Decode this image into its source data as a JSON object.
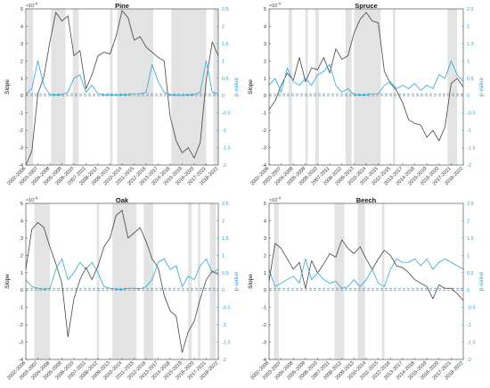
{
  "colors": {
    "slope": "#444444",
    "pvalue": "#2aa6d6",
    "shade": "#e3e3e3",
    "axis": "#555555"
  },
  "chart_data": [
    {
      "type": "line",
      "title": "Pine",
      "ylabel": "Slope",
      "y2label": "p-value",
      "exponent_label": "×10",
      "exponent": "-4",
      "ylim": [
        -4,
        5
      ],
      "y2lim": [
        -2,
        2.5
      ],
      "yticks": [
        -4,
        -3,
        -2,
        -1,
        0,
        1,
        2,
        3,
        4,
        5
      ],
      "y2ticks": [
        -2,
        -1.5,
        -1,
        -0.5,
        0,
        0.5,
        1,
        1.5,
        2,
        2.5
      ],
      "xlim": [
        2006,
        2022
      ],
      "xticks": [
        2006,
        2007,
        2008,
        2009,
        2010,
        2011,
        2012,
        2013,
        2014,
        2015,
        2016,
        2017,
        2018,
        2019,
        2020,
        2021,
        2022
      ],
      "xticklabels": [
        "2002-2006",
        "2003-2007",
        "2004-2008",
        "2005-2009",
        "2006-2010",
        "2007-2011",
        "2008-2012",
        "2009-2013",
        "2010-2014",
        "2011-2015",
        "2012-2016",
        "2013-2017",
        "2014-2018",
        "2015-2019",
        "2016-2020",
        "2017-2021",
        "2018-2022"
      ],
      "shaded_periods": [
        [
          2006.1,
          2006.6
        ],
        [
          2008.1,
          2009.3
        ],
        [
          2009.9,
          2010.4
        ],
        [
          2013.0,
          2013.2
        ],
        [
          2013.6,
          2016.6
        ],
        [
          2018.1,
          2021.0
        ],
        [
          2021.6,
          2022.0
        ]
      ],
      "reference_lines": [
        0.05,
        0
      ],
      "series": [
        {
          "axis": "left",
          "x": [
            2006,
            2006.5,
            2007,
            2007.5,
            2008,
            2008.5,
            2009,
            2009.5,
            2010,
            2010.5,
            2011,
            2011.5,
            2012,
            2012.5,
            2013,
            2013.5,
            2014,
            2014.5,
            2015,
            2015.5,
            2016,
            2016.5,
            2017,
            2017.5,
            2018,
            2018.5,
            2019,
            2019.5,
            2020,
            2020.5,
            2021,
            2021.5,
            2022
          ],
          "values": [
            -4,
            -3.2,
            0.1,
            1.1,
            3.1,
            4.8,
            4.3,
            4.6,
            2.3,
            2.6,
            0.4,
            1.2,
            2.3,
            2.5,
            2.4,
            3.4,
            4.9,
            4.5,
            3.2,
            3.4,
            2.8,
            2.5,
            2.2,
            2.0,
            -1.2,
            -2.6,
            -3.3,
            -3.0,
            -3.6,
            -2.7,
            0.9,
            3.1,
            2.3
          ]
        },
        {
          "axis": "right",
          "x": [
            2006,
            2006.5,
            2007,
            2007.5,
            2008,
            2008.5,
            2009,
            2009.5,
            2010,
            2010.5,
            2011,
            2011.5,
            2012,
            2012.5,
            2013,
            2013.5,
            2014,
            2014.5,
            2015,
            2015.5,
            2016,
            2016.5,
            2017,
            2017.5,
            2018,
            2018.5,
            2019,
            2019.5,
            2020,
            2020.5,
            2021,
            2021.5,
            2022
          ],
          "values": [
            0.05,
            0.2,
            1.0,
            0.3,
            0.03,
            0.02,
            0.03,
            0.1,
            0.5,
            0.6,
            0.1,
            0.3,
            0.05,
            0.02,
            0.03,
            0.01,
            0.02,
            0.03,
            0.05,
            0.05,
            0.1,
            0.9,
            0.4,
            0.1,
            0.02,
            0.01,
            0.01,
            0.02,
            0.03,
            0.1,
            1.0,
            0.1,
            0.05
          ]
        }
      ]
    },
    {
      "type": "line",
      "title": "Spruce",
      "ylabel": "Slope",
      "y2label": "p-value",
      "exponent_label": "×10",
      "exponent": "-4",
      "ylim": [
        -4,
        5
      ],
      "y2lim": [
        -2,
        2.5
      ],
      "yticks": [
        -4,
        -3,
        -2,
        -1,
        0,
        1,
        2,
        3,
        4,
        5
      ],
      "y2ticks": [
        -2,
        -1.5,
        -1,
        -0.5,
        0,
        0.5,
        1,
        1.5,
        2,
        2.5
      ],
      "xlim": [
        2006,
        2022
      ],
      "xticks": [
        2006,
        2007,
        2008,
        2009,
        2010,
        2011,
        2012,
        2013,
        2014,
        2015,
        2016,
        2017,
        2018,
        2019,
        2020,
        2021,
        2022
      ],
      "xticklabels": [
        "2002-2006",
        "2003-2007",
        "2004-2008",
        "2005-2009",
        "2006-2010",
        "2007-2011",
        "2008-2012",
        "2009-2013",
        "2010-2014",
        "2011-2015",
        "2012-2016",
        "2013-2017",
        "2014-2018",
        "2015-2019",
        "2016-2020",
        "2017-2021",
        "2018-2022"
      ],
      "shaded_periods": [
        [
          2007.6,
          2007.9
        ],
        [
          2009.0,
          2009.2
        ],
        [
          2009.8,
          2010.1
        ],
        [
          2012.3,
          2012.8
        ],
        [
          2013.0,
          2015.2
        ],
        [
          2016.2,
          2016.4
        ],
        [
          2020.7,
          2021.5
        ]
      ],
      "reference_lines": [
        0.05,
        0
      ],
      "series": [
        {
          "axis": "left",
          "x": [
            2006,
            2006.5,
            2007,
            2007.5,
            2008,
            2008.5,
            2009,
            2009.5,
            2010,
            2010.5,
            2011,
            2011.5,
            2012,
            2012.5,
            2013,
            2013.5,
            2014,
            2014.5,
            2015,
            2015.5,
            2016,
            2016.5,
            2017,
            2017.5,
            2018,
            2018.5,
            2019,
            2019.5,
            2020,
            2020.5,
            2021,
            2021.5,
            2022
          ],
          "values": [
            -0.8,
            -0.3,
            0.6,
            1.3,
            0.9,
            2.2,
            0.8,
            1.6,
            1.5,
            2.2,
            1.3,
            2.7,
            2.1,
            2.3,
            3.6,
            4.4,
            4.8,
            4.3,
            4.2,
            1.4,
            0.7,
            0.3,
            -0.4,
            -1.4,
            -1.6,
            -1.7,
            -2.4,
            -2.0,
            -2.6,
            -1.8,
            0.7,
            1.0,
            0.5
          ]
        },
        {
          "axis": "right",
          "x": [
            2006,
            2006.5,
            2007,
            2007.5,
            2008,
            2008.5,
            2009,
            2009.5,
            2010,
            2010.5,
            2011,
            2011.5,
            2012,
            2012.5,
            2013,
            2013.5,
            2014,
            2014.5,
            2015,
            2015.5,
            2016,
            2016.5,
            2017,
            2017.5,
            2018,
            2018.5,
            2019,
            2019.5,
            2020,
            2020.5,
            2021,
            2021.5,
            2022
          ],
          "values": [
            0.3,
            0.5,
            0.1,
            0.8,
            0.4,
            0.3,
            0.5,
            0.3,
            0.6,
            0.7,
            0.9,
            0.3,
            0.1,
            0.2,
            0.03,
            0.02,
            0.02,
            0.05,
            0.05,
            0.3,
            0.4,
            0.2,
            0.3,
            0.2,
            0.35,
            0.15,
            0.3,
            0.2,
            0.6,
            0.5,
            1.0,
            0.6,
            0.4
          ]
        }
      ]
    },
    {
      "type": "line",
      "title": "Oak",
      "ylabel": "Slope",
      "y2label": "p-value",
      "exponent_label": "×10",
      "exponent": "-4",
      "ylim": [
        -4,
        5
      ],
      "y2lim": [
        -2,
        2.5
      ],
      "yticks": [
        -4,
        -3,
        -2,
        -1,
        0,
        1,
        2,
        3,
        4,
        5
      ],
      "y2ticks": [
        -2,
        -1.5,
        -1,
        -0.5,
        0,
        0.5,
        1,
        1.5,
        2,
        2.5
      ],
      "xlim": [
        2006,
        2022
      ],
      "xticks": [
        2006,
        2007,
        2008,
        2009,
        2010,
        2011,
        2012,
        2013,
        2014,
        2015,
        2016,
        2017,
        2018,
        2019,
        2020,
        2021,
        2022
      ],
      "xticklabels": [
        "2002-2006",
        "2003-2007",
        "2004-2008",
        "2005-2009",
        "2006-2010",
        "2007-2011",
        "2008-2012",
        "2009-2013",
        "2010-2014",
        "2011-2015",
        "2012-2016",
        "2013-2017",
        "2014-2018",
        "2015-2019",
        "2016-2020",
        "2017-2021",
        "2018-2022"
      ],
      "shaded_periods": [
        [
          2006.7,
          2008.0
        ],
        [
          2011.9,
          2012.1
        ],
        [
          2013.2,
          2015.2
        ],
        [
          2015.8,
          2016.6
        ],
        [
          2019.5,
          2019.8
        ],
        [
          2020.3,
          2020.5
        ],
        [
          2021.3,
          2021.8
        ]
      ],
      "reference_lines": [
        0.05,
        0
      ],
      "series": [
        {
          "axis": "left",
          "x": [
            2006,
            2006.5,
            2007,
            2007.5,
            2008,
            2008.5,
            2009,
            2009.5,
            2010,
            2010.5,
            2011,
            2011.5,
            2012,
            2012.5,
            2013,
            2013.5,
            2014,
            2014.5,
            2015,
            2015.5,
            2016,
            2016.5,
            2017,
            2017.5,
            2018,
            2018.5,
            2019,
            2019.5,
            2020,
            2020.5,
            2021,
            2021.5,
            2022
          ],
          "values": [
            1.2,
            3.5,
            3.9,
            3.6,
            2.5,
            1.5,
            0.4,
            -2.7,
            -0.5,
            0.6,
            1.3,
            0.6,
            1.4,
            2.5,
            3.0,
            4.3,
            4.6,
            3.0,
            3.3,
            3.6,
            2.8,
            1.8,
            1.3,
            -0.3,
            -1.2,
            -1.5,
            -3.6,
            -2.4,
            -1.8,
            -0.5,
            0.6,
            1.1,
            0.9
          ]
        },
        {
          "axis": "right",
          "x": [
            2006,
            2006.5,
            2007,
            2007.5,
            2008,
            2008.5,
            2009,
            2009.5,
            2010,
            2010.5,
            2011,
            2011.5,
            2012,
            2012.5,
            2013,
            2013.5,
            2014,
            2014.5,
            2015,
            2015.5,
            2016,
            2016.5,
            2017,
            2017.5,
            2018,
            2018.5,
            2019,
            2019.5,
            2020,
            2020.5,
            2021,
            2021.5,
            2022
          ],
          "values": [
            0.3,
            0.1,
            0.05,
            0.02,
            0.05,
            0.6,
            0.9,
            0.3,
            0.5,
            0.8,
            0.6,
            0.8,
            0.5,
            0.1,
            0.05,
            0.02,
            0.02,
            0.05,
            0.05,
            0.03,
            0.1,
            0.3,
            0.8,
            0.9,
            0.6,
            0.7,
            0.1,
            0.4,
            0.3,
            0.7,
            0.9,
            0.5,
            0.6
          ]
        }
      ]
    },
    {
      "type": "line",
      "title": "Beech",
      "ylabel": "Slope",
      "y2label": "p-value",
      "exponent_label": "×10",
      "exponent": "-4",
      "ylim": [
        -4,
        5
      ],
      "y2lim": [
        -2,
        2.5
      ],
      "yticks": [
        -4,
        -3,
        -2,
        -1,
        0,
        1,
        2,
        3,
        4,
        5
      ],
      "y2ticks": [
        -2,
        -1.5,
        -1,
        -0.5,
        0,
        0.5,
        1,
        1.5,
        2,
        2.5
      ],
      "xlim": [
        2006,
        2022
      ],
      "xticks": [
        2006,
        2007,
        2008,
        2009,
        2010,
        2011,
        2012,
        2013,
        2014,
        2015,
        2016,
        2017,
        2018,
        2019,
        2020,
        2021,
        2022
      ],
      "xticklabels": [
        "2002-2006",
        "2003-2007",
        "2004-2008",
        "2005-2009",
        "2006-2010",
        "2007-2011",
        "2008-2012",
        "2009-2013",
        "2010-2014",
        "2011-2015",
        "2012-2016",
        "2013-2017",
        "2014-2018",
        "2015-2019",
        "2016-2020",
        "2017-2021",
        "2018-2022"
      ],
      "shaded_periods": [
        [
          2006.4,
          2006.8
        ],
        [
          2011.4,
          2012.2
        ],
        [
          2013.3,
          2013.9
        ],
        [
          2015.3,
          2015.5
        ]
      ],
      "reference_lines": [
        0.05,
        0
      ],
      "series": [
        {
          "axis": "left",
          "x": [
            2006,
            2006.5,
            2007,
            2007.5,
            2008,
            2008.5,
            2009,
            2009.5,
            2010,
            2010.5,
            2011,
            2011.5,
            2012,
            2012.5,
            2013,
            2013.5,
            2014,
            2014.5,
            2015,
            2015.5,
            2016,
            2016.5,
            2017,
            2017.5,
            2018,
            2018.5,
            2019,
            2019.5,
            2020,
            2020.5,
            2021,
            2021.5,
            2022
          ],
          "values": [
            0.5,
            2.7,
            2.4,
            1.8,
            1.2,
            1.6,
            0.1,
            1.7,
            1.0,
            1.5,
            2.1,
            1.9,
            2.9,
            2.4,
            2.1,
            2.5,
            1.8,
            1.2,
            1.8,
            2.3,
            2.0,
            1.4,
            1.3,
            1.0,
            0.6,
            0.4,
            0.2,
            -0.5,
            0.3,
            0.1,
            0.1,
            -0.2,
            -0.6
          ]
        },
        {
          "axis": "right",
          "x": [
            2006,
            2006.5,
            2007,
            2007.5,
            2008,
            2008.5,
            2009,
            2009.5,
            2010,
            2010.5,
            2011,
            2011.5,
            2012,
            2012.5,
            2013,
            2013.5,
            2014,
            2014.5,
            2015,
            2015.5,
            2016,
            2016.5,
            2017,
            2017.5,
            2018,
            2018.5,
            2019,
            2019.5,
            2020,
            2020.5,
            2021,
            2021.5,
            2022
          ],
          "values": [
            0.6,
            0.1,
            0.2,
            0.3,
            0.4,
            0.2,
            0.9,
            0.3,
            0.5,
            0.3,
            0.2,
            0.25,
            0.05,
            0.1,
            0.3,
            0.1,
            0.3,
            0.6,
            0.2,
            0.1,
            0.6,
            0.9,
            0.8,
            0.8,
            0.9,
            0.7,
            0.9,
            0.6,
            0.8,
            0.9,
            0.8,
            0.7,
            0.6
          ]
        }
      ]
    }
  ]
}
